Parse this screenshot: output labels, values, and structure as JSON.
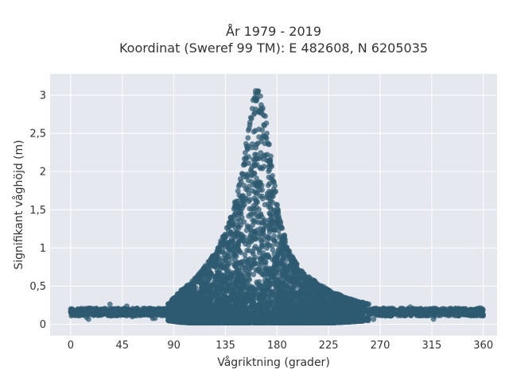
{
  "chart_data": {
    "type": "scatter",
    "title_line1": "År 1979 - 2019",
    "title_line2": "Koordinat (Sweref 99 TM): E 482608, N 6205035",
    "xlabel": "Vågriktning (grader)",
    "ylabel": "Signifikant våghöjd (m)",
    "xlim": [
      -18,
      372
    ],
    "ylim": [
      -0.15,
      3.28
    ],
    "x_ticks": [
      0,
      45,
      90,
      135,
      180,
      225,
      270,
      315,
      360
    ],
    "x_tick_labels": [
      "0",
      "45",
      "90",
      "135",
      "180",
      "225",
      "270",
      "315",
      "360"
    ],
    "y_ticks": [
      0,
      0.5,
      1,
      1.5,
      2,
      2.5,
      3
    ],
    "y_tick_labels": [
      "0",
      "0,5",
      "1",
      "1,5",
      "2",
      "2,5",
      "3"
    ],
    "grid": true,
    "legend": "none",
    "colors": {
      "plot_background": "#e5e8ef",
      "grid": "#ffffff",
      "marker": "#2e5a70"
    },
    "envelope": {
      "x": [
        0,
        20,
        45,
        70,
        85,
        95,
        105,
        115,
        125,
        135,
        140,
        145,
        150,
        155,
        158,
        160,
        163,
        165,
        168,
        170,
        175,
        180,
        185,
        190,
        195,
        200,
        210,
        225,
        240,
        260,
        280,
        300,
        320,
        340,
        360
      ],
      "y_max": [
        0.19,
        0.21,
        0.22,
        0.24,
        0.27,
        0.43,
        0.55,
        0.72,
        0.92,
        1.22,
        1.45,
        1.7,
        2.05,
        2.62,
        2.9,
        3.01,
        3.12,
        3.08,
        2.92,
        2.72,
        2.22,
        1.6,
        1.25,
        0.98,
        0.85,
        0.72,
        0.6,
        0.45,
        0.35,
        0.27,
        0.24,
        0.21,
        0.2,
        0.2,
        0.19
      ],
      "y_min": [
        0.08,
        0.09,
        0.09,
        0.08,
        0.05,
        0.03,
        0.02,
        0.02,
        0.02,
        0.02,
        0.02,
        0.02,
        0.02,
        0.02,
        0.02,
        0.02,
        0.02,
        0.02,
        0.02,
        0.02,
        0.02,
        0.02,
        0.02,
        0.02,
        0.02,
        0.02,
        0.02,
        0.02,
        0.03,
        0.05,
        0.06,
        0.08,
        0.09,
        0.1,
        0.11
      ]
    }
  }
}
